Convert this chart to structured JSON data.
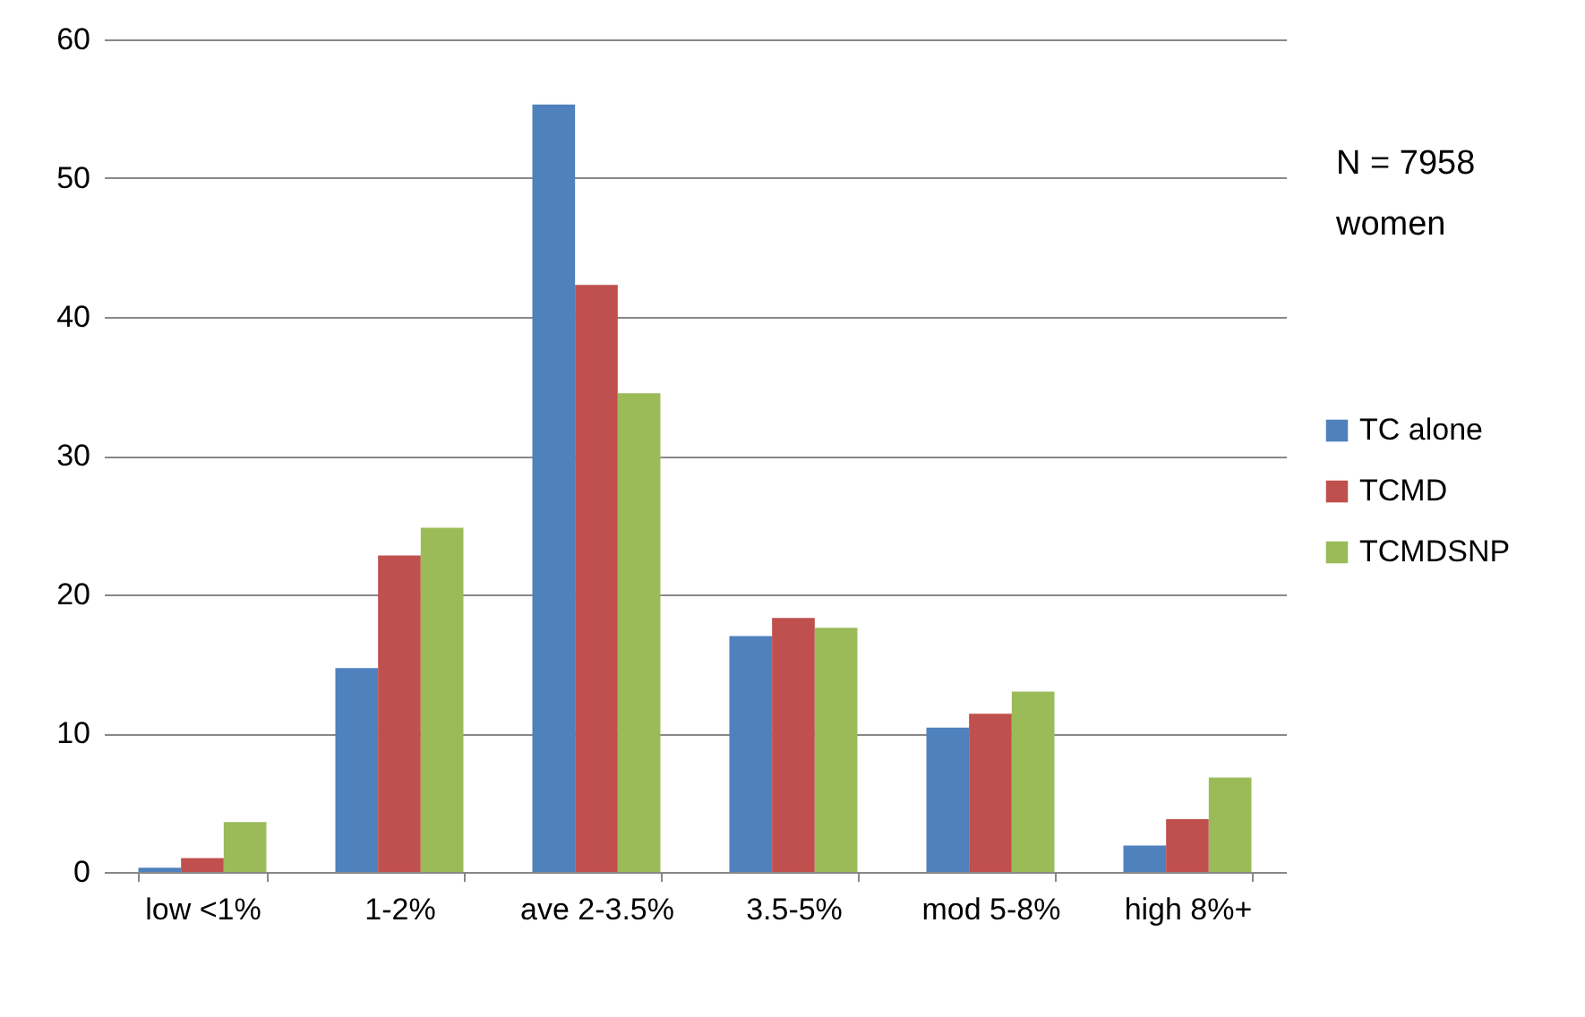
{
  "chart_data": {
    "type": "bar",
    "categories": [
      "low <1%",
      "1-2%",
      "ave 2-3.5%",
      "3.5-5%",
      "mod 5-8%",
      "high 8%+"
    ],
    "series": [
      {
        "name": "TC alone",
        "color": "#4f81bd",
        "values": [
          0.3,
          14.7,
          55.3,
          17,
          10.4,
          1.9
        ]
      },
      {
        "name": "TCMD",
        "color": "#c0504d",
        "values": [
          1,
          22.8,
          42.3,
          18.3,
          11.4,
          3.8
        ]
      },
      {
        "name": "TCMDSNP",
        "color": "#9bbb59",
        "values": [
          3.6,
          24.8,
          34.5,
          17.6,
          13,
          6.8
        ]
      }
    ],
    "ylim": [
      0,
      60
    ],
    "yticks": [
      0,
      10,
      20,
      30,
      40,
      50,
      60
    ],
    "grid": "y",
    "legend": "right",
    "annotations": [
      "N = 7958\nwomen"
    ]
  }
}
